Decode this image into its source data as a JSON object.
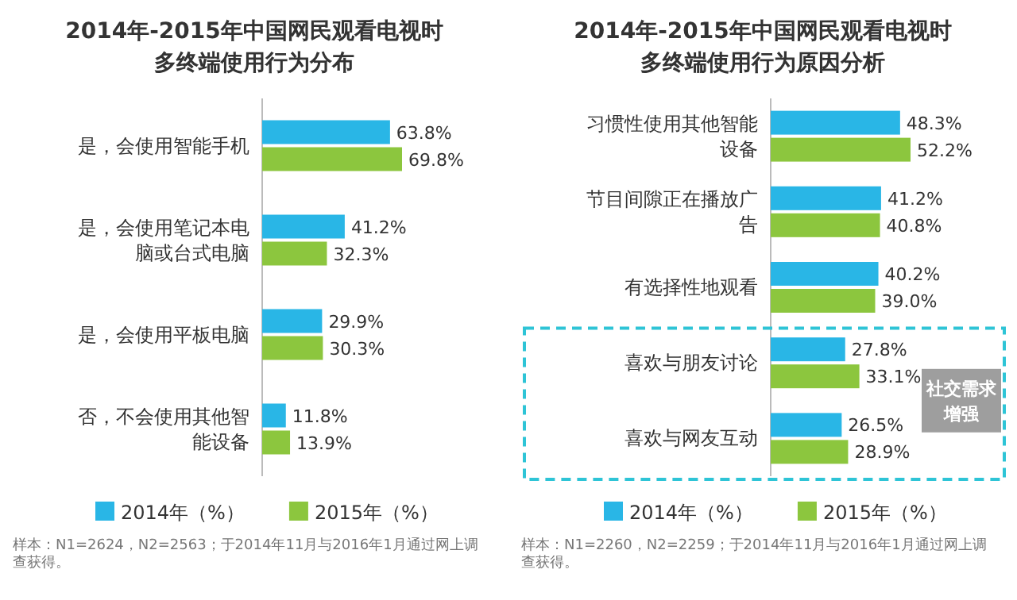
{
  "chart_data": [
    {
      "type": "bar",
      "orientation": "horizontal",
      "title": "2014年-2015年中国网民观看电视时多终端使用行为分布",
      "categories": [
        "是，会使用智能手机",
        "是，会使用笔记本电脑或台式电脑",
        "是，会使用平板电脑",
        "否，不会使用其他智能设备"
      ],
      "series": [
        {
          "name": "2014年（%）",
          "color": "#29b6e6",
          "values": [
            63.8,
            41.2,
            29.9,
            11.8
          ],
          "value_labels": [
            "63.8%",
            "41.2%",
            "29.9%",
            "11.8%"
          ]
        },
        {
          "name": "2015年（%）",
          "color": "#8cc63e",
          "values": [
            69.8,
            32.3,
            30.3,
            13.9
          ],
          "value_labels": [
            "69.8%",
            "32.3%",
            "30.3%",
            "13.9%"
          ]
        }
      ],
      "legend": "bottom",
      "annotations": [
        "样本：N1=2624，N2=2563；于2014年11月与2016年1月通过网上调查获得。"
      ]
    },
    {
      "type": "bar",
      "orientation": "horizontal",
      "title": "2014年-2015年中国网民观看电视时多终端使用行为原因分析",
      "categories": [
        "习惯性使用其他智能设备",
        "节目间隙正在播放广告",
        "有选择性地观看",
        "喜欢与朋友讨论",
        "喜欢与网友互动"
      ],
      "series": [
        {
          "name": "2014年（%）",
          "color": "#29b6e6",
          "values": [
            48.3,
            41.2,
            40.2,
            27.8,
            26.5
          ],
          "value_labels": [
            "48.3%",
            "41.2%",
            "40.2%",
            "27.8%",
            "26.5%"
          ]
        },
        {
          "name": "2015年（%）",
          "color": "#8cc63e",
          "values": [
            52.2,
            40.8,
            39.0,
            33.1,
            28.9
          ],
          "value_labels": [
            "52.2%",
            "40.8%",
            "39.0%",
            "33.1%",
            "28.9%"
          ]
        }
      ],
      "legend": "bottom",
      "annotations": [
        "样本：N1=2260，N2=2259；于2014年11月与2016年1月通过网上调查获得。",
        "社交需求增强"
      ]
    }
  ]
}
